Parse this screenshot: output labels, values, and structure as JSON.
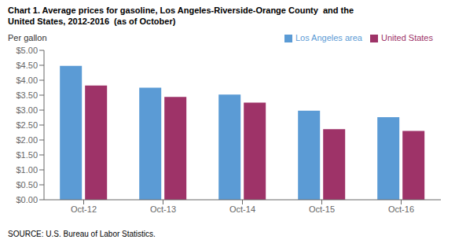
{
  "chart_data": {
    "type": "bar",
    "title": "Chart 1. Average prices for gasoline, Los Angeles-Riverside-Orange County  and the\nUnited States, 2012-2016  (as of October)",
    "y_label": "Per gallon",
    "annotations": [
      "SOURCE: U.S. Bureau of Labor Statistics."
    ],
    "categories": [
      "Oct-12",
      "Oct-13",
      "Oct-14",
      "Oct-15",
      "Oct-16"
    ],
    "series": [
      {
        "name": "Los Angeles area",
        "color": "#5B9BD5",
        "values": [
          4.48,
          3.75,
          3.52,
          2.98,
          2.76
        ]
      },
      {
        "name": "United States",
        "color": "#9E3368",
        "values": [
          3.82,
          3.44,
          3.25,
          2.36,
          2.3
        ]
      }
    ],
    "ylim": [
      0,
      5.0
    ],
    "yticks": [
      {
        "value": 0.0,
        "label": "$0.00"
      },
      {
        "value": 0.5,
        "label": "$0.50"
      },
      {
        "value": 1.0,
        "label": "$1.00"
      },
      {
        "value": 1.5,
        "label": "$1.50"
      },
      {
        "value": 2.0,
        "label": "$2.00"
      },
      {
        "value": 2.5,
        "label": "$2.50"
      },
      {
        "value": 3.0,
        "label": "$3.00"
      },
      {
        "value": 3.5,
        "label": "$3.50"
      },
      {
        "value": 4.0,
        "label": "$4.00"
      },
      {
        "value": 4.5,
        "label": "$4.50"
      },
      {
        "value": 5.0,
        "label": "$5.00"
      }
    ],
    "legend": "upper right",
    "grid": false
  }
}
